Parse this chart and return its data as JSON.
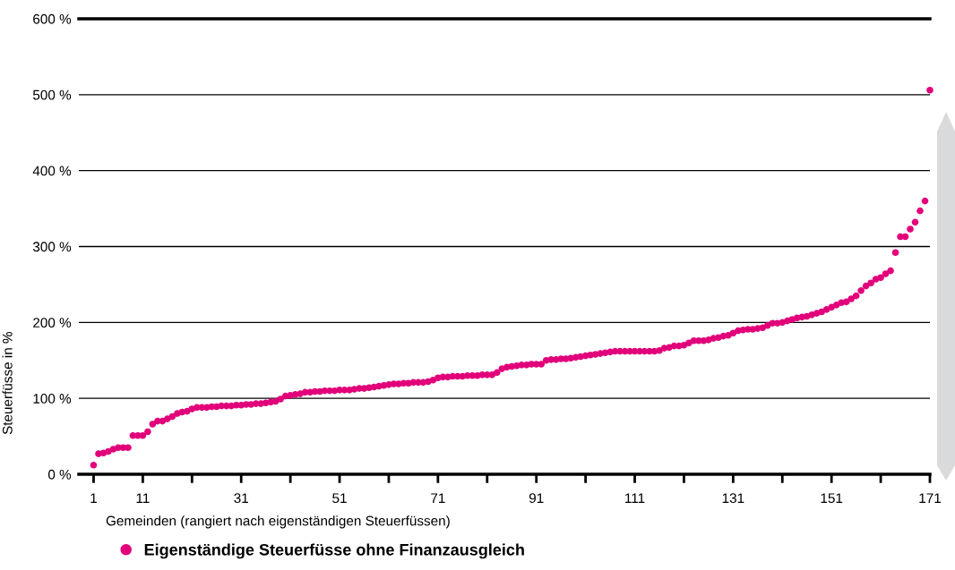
{
  "chart_data": {
    "type": "scatter",
    "xlabel": "Gemeinden (rangiert nach eigenständigen Steuerfüssen)",
    "ylabel": "Steuerfüsse in %",
    "x": [
      1,
      2,
      3,
      4,
      5,
      6,
      7,
      8,
      9,
      10,
      11,
      12,
      13,
      14,
      15,
      16,
      17,
      18,
      19,
      20,
      21,
      22,
      23,
      24,
      25,
      26,
      27,
      28,
      29,
      30,
      31,
      32,
      33,
      34,
      35,
      36,
      37,
      38,
      39,
      40,
      41,
      42,
      43,
      44,
      45,
      46,
      47,
      48,
      49,
      50,
      51,
      52,
      53,
      54,
      55,
      56,
      57,
      58,
      59,
      60,
      61,
      62,
      63,
      64,
      65,
      66,
      67,
      68,
      69,
      70,
      71,
      72,
      73,
      74,
      75,
      76,
      77,
      78,
      79,
      80,
      81,
      82,
      83,
      84,
      85,
      86,
      87,
      88,
      89,
      90,
      91,
      92,
      93,
      94,
      95,
      96,
      97,
      98,
      99,
      100,
      101,
      102,
      103,
      104,
      105,
      106,
      107,
      108,
      109,
      110,
      111,
      112,
      113,
      114,
      115,
      116,
      117,
      118,
      119,
      120,
      121,
      122,
      123,
      124,
      125,
      126,
      127,
      128,
      129,
      130,
      131,
      132,
      133,
      134,
      135,
      136,
      137,
      138,
      139,
      140,
      141,
      142,
      143,
      144,
      145,
      146,
      147,
      148,
      149,
      150,
      151,
      152,
      153,
      154,
      155,
      156,
      157,
      158,
      159,
      160,
      161,
      162,
      163,
      164,
      165,
      166,
      167,
      168,
      169,
      170,
      171
    ],
    "series": [
      {
        "name": "Eigenständige Steuerfüsse ohne Finanzausgleich",
        "color": "#e2007a",
        "values": [
          12,
          27,
          28,
          30,
          33,
          35,
          35,
          35,
          51,
          51,
          51,
          56,
          66,
          70,
          70,
          73,
          76,
          80,
          82,
          83,
          86,
          88,
          88,
          88,
          89,
          89,
          90,
          90,
          90,
          91,
          91,
          92,
          92,
          93,
          93,
          94,
          95,
          96,
          99,
          103,
          104,
          105,
          106,
          108,
          108,
          109,
          109,
          110,
          110,
          110,
          111,
          111,
          111,
          112,
          113,
          113,
          114,
          115,
          116,
          117,
          118,
          119,
          119,
          120,
          120,
          121,
          121,
          121,
          122,
          124,
          127,
          128,
          128,
          129,
          129,
          129,
          130,
          130,
          130,
          131,
          131,
          131,
          134,
          139,
          141,
          142,
          143,
          144,
          144,
          145,
          145,
          145,
          150,
          151,
          151,
          152,
          152,
          153,
          154,
          155,
          156,
          157,
          158,
          159,
          160,
          161,
          162,
          162,
          162,
          162,
          162,
          162,
          162,
          162,
          162,
          163,
          166,
          167,
          169,
          169,
          170,
          173,
          176,
          176,
          176,
          177,
          179,
          180,
          182,
          183,
          186,
          189,
          190,
          191,
          191,
          192,
          193,
          196,
          199,
          199,
          200,
          202,
          204,
          206,
          207,
          208,
          210,
          212,
          214,
          217,
          220,
          223,
          226,
          227,
          231,
          235,
          242,
          248,
          252,
          257,
          259,
          264,
          268,
          292,
          313,
          313,
          323,
          332,
          347,
          360,
          506
        ]
      }
    ],
    "xlim": [
      -2,
      171
    ],
    "xticks": [
      1,
      11,
      {
        "value": 21,
        "label": null
      },
      31,
      {
        "value": 41,
        "label": null
      },
      51,
      {
        "value": 61,
        "label": null
      },
      71,
      {
        "value": 81,
        "label": null
      },
      91,
      {
        "value": 101,
        "label": null
      },
      111,
      {
        "value": 121,
        "label": null
      },
      131,
      {
        "value": 141,
        "label": null
      },
      151,
      {
        "value": 161,
        "label": null
      },
      171
    ],
    "ylim": [
      0,
      600
    ],
    "yticks": [
      {
        "value": 0,
        "label": "0 %"
      },
      {
        "value": 100,
        "label": "100 %"
      },
      {
        "value": 200,
        "label": "200 %"
      },
      {
        "value": 300,
        "label": "300 %"
      },
      {
        "value": 400,
        "label": "400 %"
      },
      {
        "value": 500,
        "label": "500 %"
      },
      {
        "value": 600,
        "label": "600 %"
      }
    ],
    "grid": "y",
    "legend": "bottom left",
    "marker": "circle"
  }
}
